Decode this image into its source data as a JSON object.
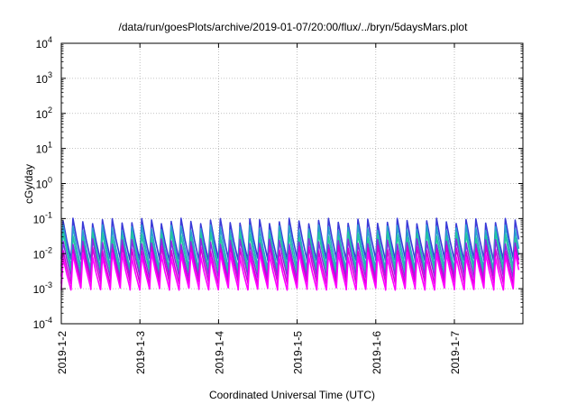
{
  "chart_data": {
    "type": "line",
    "title": "/data/run/goesPlots/archive/2019-01-07/20:00/flux/../bryn/5daysMars.plot",
    "xlabel": "Coordinated Universal Time (UTC)",
    "ylabel": "cGy/day",
    "yscale": "log",
    "ylim": [
      0.0001,
      10000
    ],
    "y_ticks": [
      {
        "value": 0.0001,
        "base": "10",
        "exp": "-4"
      },
      {
        "value": 0.001,
        "base": "10",
        "exp": "-3"
      },
      {
        "value": 0.01,
        "base": "10",
        "exp": "-2"
      },
      {
        "value": 0.1,
        "base": "10",
        "exp": "-1"
      },
      {
        "value": 1,
        "base": "10",
        "exp": "0"
      },
      {
        "value": 10,
        "base": "10",
        "exp": "1"
      },
      {
        "value": 100,
        "base": "10",
        "exp": "2"
      },
      {
        "value": 1000,
        "base": "10",
        "exp": "3"
      },
      {
        "value": 10000,
        "base": "10",
        "exp": "4"
      }
    ],
    "x_range_days": [
      "2019-01-02",
      "2019-01-07 20:00"
    ],
    "x_ticks": [
      "2019-1-2",
      "2019-1-3",
      "2019-1-4",
      "2019-1-5",
      "2019-1-6",
      "2019-1-7"
    ],
    "grid": true,
    "oscillation_period_hours": 3,
    "series": [
      {
        "color": "#3a3ad8",
        "peak": 0.085,
        "trough": 0.007
      },
      {
        "color": "#2aa0d0",
        "peak": 0.055,
        "trough": 0.004
      },
      {
        "color": "#22c7a0",
        "peak": 0.035,
        "trough": 0.003
      },
      {
        "color": "#8a2be2",
        "peak": 0.022,
        "trough": 0.0022
      },
      {
        "color": "#d400d4",
        "peak": 0.014,
        "trough": 0.0015
      },
      {
        "color": "#ff00ff",
        "peak": 0.009,
        "trough": 0.001
      }
    ]
  }
}
